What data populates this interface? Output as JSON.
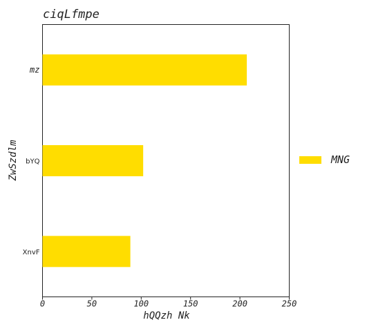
{
  "chart_data": {
    "type": "bar",
    "orientation": "horizontal",
    "title": "ciqLfmpe",
    "xlabel": "hQQzh  Nk",
    "ylabel": "ZwSzdlm",
    "categories": [
      "mz",
      "bYQ",
      "XnvF"
    ],
    "series": [
      {
        "name": "MNG",
        "values": [
          207,
          102,
          89
        ],
        "color": "#FFDD00"
      }
    ],
    "xlim": [
      0,
      250
    ],
    "xticks": [
      "0",
      "50",
      "100",
      "150",
      "200",
      "250"
    ],
    "grid": false,
    "legend": "right"
  }
}
